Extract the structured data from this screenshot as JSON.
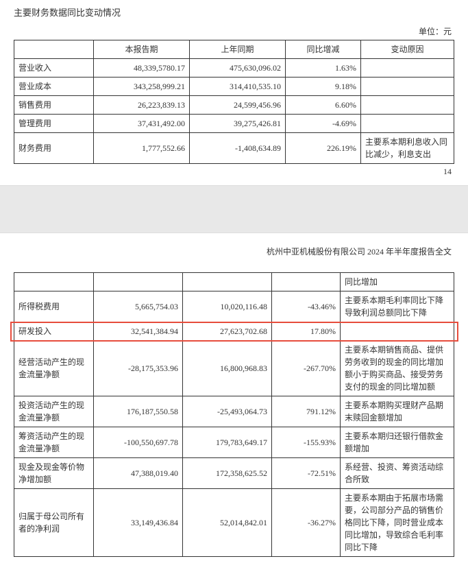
{
  "page1": {
    "title": "主要财务数据同比变动情况",
    "unit": "单位：元",
    "headers": [
      "",
      "本报告期",
      "上年同期",
      "同比增减",
      "变动原因"
    ],
    "rows": [
      {
        "label": "营业收入",
        "cur": "48,339,5780.17",
        "cur_v": "483,395,780.17",
        "prev": "475,630,096.02",
        "pct": "1.63%",
        "reason": ""
      },
      {
        "label": "营业成本",
        "cur": "343,258,999.21",
        "prev": "314,410,535.10",
        "pct": "9.18%",
        "reason": ""
      },
      {
        "label": "销售费用",
        "cur": "26,223,839.13",
        "prev": "24,599,456.96",
        "pct": "6.60%",
        "reason": ""
      },
      {
        "label": "管理费用",
        "cur": "37,431,492.00",
        "prev": "39,275,426.81",
        "pct": "-4.69%",
        "reason": ""
      },
      {
        "label": "财务费用",
        "cur": "1,777,552.66",
        "prev": "-1,408,634.89",
        "pct": "226.19%",
        "reason": "主要系本期利息收入同比减少，利息支出"
      }
    ],
    "pagenum": "14"
  },
  "page2": {
    "report_header": "杭州中亚机械股份有限公司 2024 年半年度报告全文",
    "rows": [
      {
        "label": "",
        "cur": "",
        "prev": "",
        "pct": "",
        "reason": "同比增加"
      },
      {
        "label": "所得税费用",
        "cur": "5,665,754.03",
        "prev": "10,020,116.48",
        "pct": "-43.46%",
        "reason": "主要系本期毛利率同比下降导致利润总额同比下降"
      },
      {
        "label": "研发投入",
        "cur": "32,541,384.94",
        "prev": "27,623,702.68",
        "pct": "17.80%",
        "reason": "",
        "highlight": true
      },
      {
        "label": "经营活动产生的现金流量净额",
        "cur": "-28,175,353.96",
        "prev": "16,800,968.83",
        "pct": "-267.70%",
        "reason": "主要系本期销售商品、提供劳务收到的现金的同比增加额小于购买商品、接受劳务支付的现金的同比增加额"
      },
      {
        "label": "投资活动产生的现金流量净额",
        "cur": "176,187,550.58",
        "prev": "-25,493,064.73",
        "pct": "791.12%",
        "reason": "主要系本期购买理财产品期末赎回金额增加"
      },
      {
        "label": "筹资活动产生的现金流量净额",
        "cur": "-100,550,697.78",
        "prev": "179,783,649.17",
        "pct": "-155.93%",
        "reason": "主要系本期归还银行借款金额增加"
      },
      {
        "label": "现金及现金等价物净增加额",
        "cur": "47,388,019.40",
        "prev": "172,358,625.52",
        "pct": "-72.51%",
        "reason": "系经营、投资、筹资活动综合所致"
      },
      {
        "label": "归属于母公司所有者的净利润",
        "cur": "33,149,436.84",
        "prev": "52,014,842.01",
        "pct": "-36.27%",
        "reason": "主要系本期由于拓展市场需要，公司部分产品的销售价格同比下降，同时营业成本同比增加，导致综合毛利率同比下降"
      }
    ]
  },
  "colors": {
    "highlight_border": "#e74c3c",
    "border": "#333333",
    "gap_bg": "#e8e8e8"
  }
}
